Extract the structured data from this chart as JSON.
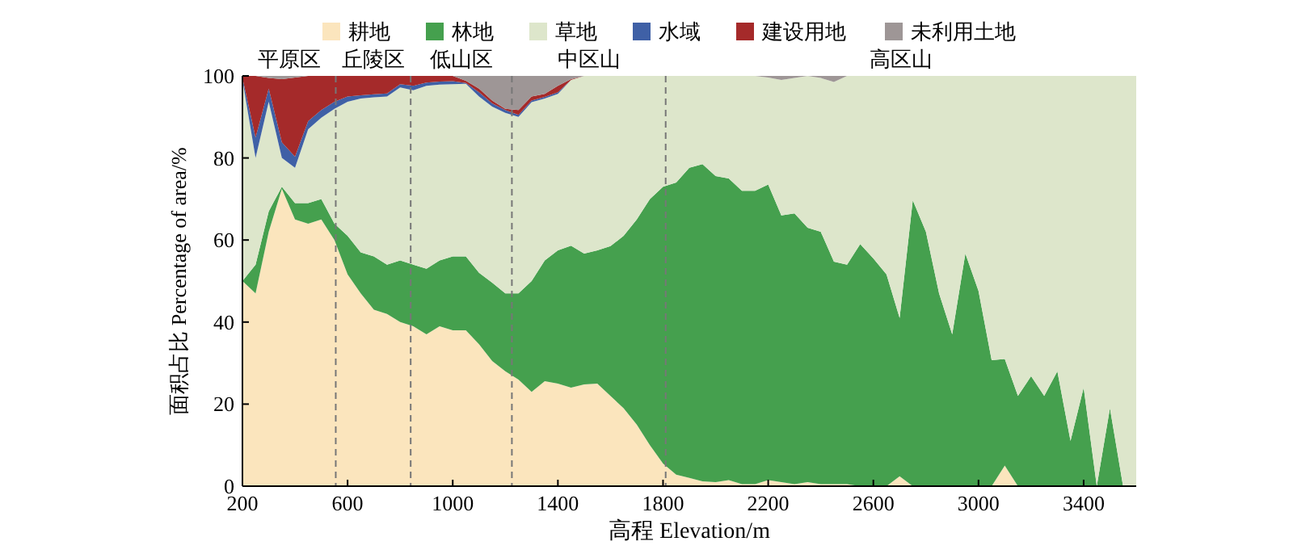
{
  "chart_data": {
    "type": "area",
    "stacked": true,
    "xlabel": "高程 Elevation/m",
    "ylabel": "面积占比 Percentage of area/%",
    "x": [
      200,
      250,
      300,
      350,
      400,
      450,
      500,
      550,
      600,
      650,
      700,
      750,
      800,
      850,
      900,
      950,
      1000,
      1050,
      1100,
      1150,
      1200,
      1250,
      1300,
      1350,
      1400,
      1450,
      1500,
      1550,
      1600,
      1650,
      1700,
      1750,
      1800,
      1850,
      1900,
      1950,
      2000,
      2050,
      2100,
      2150,
      2200,
      2250,
      2300,
      2350,
      2400,
      2450,
      2500,
      2550,
      2600,
      2650,
      2700,
      2750,
      2800,
      2850,
      2900,
      2950,
      3000,
      3050,
      3100,
      3150,
      3200,
      3250,
      3300,
      3350,
      3400,
      3450,
      3500,
      3550,
      3600
    ],
    "series": [
      {
        "name": "耕地",
        "color": "#fbe5bd",
        "values": [
          50,
          47,
          62,
          72.5,
          65,
          64,
          65,
          60,
          51.6,
          47,
          43,
          42,
          40,
          39,
          37,
          39,
          38,
          38,
          34.6,
          30.5,
          28,
          26,
          23,
          25.6,
          25,
          24,
          24.8,
          25,
          22,
          19,
          15,
          10,
          5.5,
          2.8,
          2,
          1.2,
          1,
          1.5,
          0.5,
          0.5,
          1.5,
          1,
          0.5,
          1,
          0.5,
          0.5,
          0.5,
          0,
          0,
          0,
          2.4,
          0,
          0,
          0,
          0,
          0,
          0,
          0,
          5,
          0,
          0,
          0,
          0,
          0,
          0,
          0,
          0,
          0,
          0
        ]
      },
      {
        "name": "林地",
        "color": "#45a04e",
        "values": [
          0,
          7,
          5,
          0.5,
          4,
          5,
          5,
          4,
          9.4,
          10,
          13,
          12,
          15,
          15,
          16,
          16,
          18,
          18,
          17.4,
          19.1,
          19,
          21,
          27,
          29.4,
          32.5,
          34.6,
          31.9,
          32.5,
          36.5,
          42,
          50,
          60,
          67.5,
          71.2,
          75.6,
          77.3,
          74.6,
          73.5,
          71.5,
          71.5,
          72,
          65,
          66,
          62,
          61.5,
          54.2,
          53.5,
          59,
          55.5,
          51.6,
          38.6,
          69.7,
          62,
          47,
          37,
          56.7,
          47.6,
          30.7,
          26,
          22,
          26.8,
          22,
          28,
          11,
          24,
          0,
          19,
          0,
          0
        ]
      },
      {
        "name": "草地",
        "color": "#dde6cb",
        "values": [
          49,
          26,
          26.7,
          7,
          8.6,
          18,
          19.8,
          28,
          32.7,
          37.5,
          38.8,
          41,
          42.2,
          42.5,
          44.6,
          42.9,
          42,
          42.1,
          43,
          42.9,
          44,
          43,
          43.6,
          39.5,
          38.1,
          40.4,
          43.3,
          42.5,
          41.5,
          39,
          35,
          30,
          27,
          26,
          22.4,
          21.5,
          24.4,
          25,
          28,
          28,
          26.1,
          33,
          33,
          37,
          37.5,
          43.8,
          46,
          41,
          44.5,
          48.4,
          59,
          30.3,
          38,
          53,
          63,
          43.3,
          52.4,
          69.3,
          69,
          78,
          73.2,
          78,
          72,
          89,
          76,
          100,
          81,
          100,
          100
        ]
      },
      {
        "name": "水域",
        "color": "#3f60a6",
        "values": [
          0.5,
          5,
          3.2,
          3.8,
          2.7,
          2,
          1.9,
          1.7,
          1.3,
          0.8,
          0.7,
          0.7,
          0.8,
          1.1,
          0.8,
          0.7,
          0.7,
          0.2,
          1,
          0.8,
          0.7,
          0.5,
          0.4,
          0.4,
          0.4,
          0,
          0,
          0,
          0,
          0,
          0,
          0,
          0,
          0,
          0,
          0,
          0,
          0,
          0,
          0,
          0,
          0,
          0,
          0,
          0,
          0,
          0,
          0,
          0,
          0,
          0,
          0,
          0,
          0,
          0,
          0,
          0,
          0,
          0,
          0,
          0,
          0,
          0,
          0,
          0,
          0,
          0,
          0,
          0
        ]
      },
      {
        "name": "建设用地",
        "color": "#a52a2a",
        "values": [
          0.5,
          15,
          2.6,
          15.4,
          19.3,
          11,
          8.3,
          6.3,
          5,
          4.7,
          4.5,
          4.3,
          2,
          2.4,
          1.6,
          1.4,
          1.3,
          0.5,
          0.9,
          0.7,
          0.3,
          1.2,
          1,
          0.7,
          1.6,
          0.2,
          0,
          0,
          0,
          0,
          0,
          0,
          0,
          0,
          0,
          0,
          0,
          0,
          0,
          0,
          0,
          0,
          0,
          0,
          0,
          0,
          0,
          0,
          0,
          0,
          0,
          0,
          0,
          0,
          0,
          0,
          0,
          0,
          0,
          0,
          0,
          0,
          0,
          0,
          0,
          0,
          0,
          0,
          0
        ]
      },
      {
        "name": "未利用土地",
        "color": "#9e9696",
        "values": [
          0,
          0,
          0.5,
          0.8,
          0.4,
          0,
          0,
          0,
          0,
          0,
          0,
          0,
          0,
          0,
          0,
          0,
          0,
          1.2,
          3.1,
          6,
          8,
          8.3,
          5,
          4.4,
          2.4,
          0.8,
          0,
          0,
          0,
          0,
          0,
          0,
          0,
          0,
          0,
          0,
          0,
          0,
          0,
          0,
          0.4,
          1,
          0.5,
          0,
          0.5,
          1.5,
          0,
          0,
          0,
          0,
          0,
          0,
          0,
          0,
          0,
          0,
          0,
          0,
          0,
          0,
          0,
          0,
          0,
          0,
          0,
          0,
          0,
          0,
          0
        ]
      }
    ],
    "xlim": [
      200,
      3600
    ],
    "xticks": [
      200,
      600,
      1000,
      1400,
      1800,
      2200,
      2600,
      3000,
      3400
    ],
    "ylim": [
      0,
      100
    ],
    "yticks": [
      0,
      20,
      40,
      60,
      80,
      100
    ],
    "ref_lines": [
      {
        "axis": "x",
        "value": 555,
        "color": "#777777",
        "line_style": "dashed"
      },
      {
        "axis": "x",
        "value": 840,
        "color": "#777777",
        "line_style": "dashed"
      },
      {
        "axis": "x",
        "value": 1225,
        "color": "#777777",
        "line_style": "dashed"
      },
      {
        "axis": "x",
        "value": 1810,
        "color": "#777777",
        "line_style": "dashed"
      }
    ],
    "annotations": [
      "平原区",
      "丘陵区",
      "低山区",
      "中区山",
      "高区山"
    ],
    "legend": "top",
    "grid": false
  }
}
